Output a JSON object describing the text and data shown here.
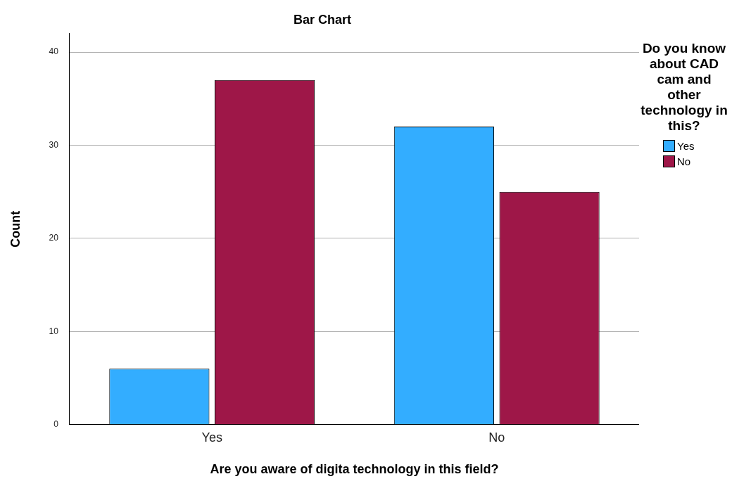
{
  "chart_data": {
    "type": "bar",
    "title": "Bar Chart",
    "xlabel": "Are you aware of digita technology in this field?",
    "ylabel": "Count",
    "legend_title": "Do you know about CAD cam and other technology in this?",
    "categories": [
      "Yes",
      "No"
    ],
    "series": [
      {
        "name": "Yes",
        "color": "#33adff",
        "values": [
          6,
          32
        ]
      },
      {
        "name": "No",
        "color": "#9e1748",
        "values": [
          37,
          25
        ]
      }
    ],
    "ylim": [
      0,
      42
    ],
    "yticks": [
      0,
      10,
      20,
      30,
      40
    ],
    "grid": "y",
    "legend": "top right"
  }
}
